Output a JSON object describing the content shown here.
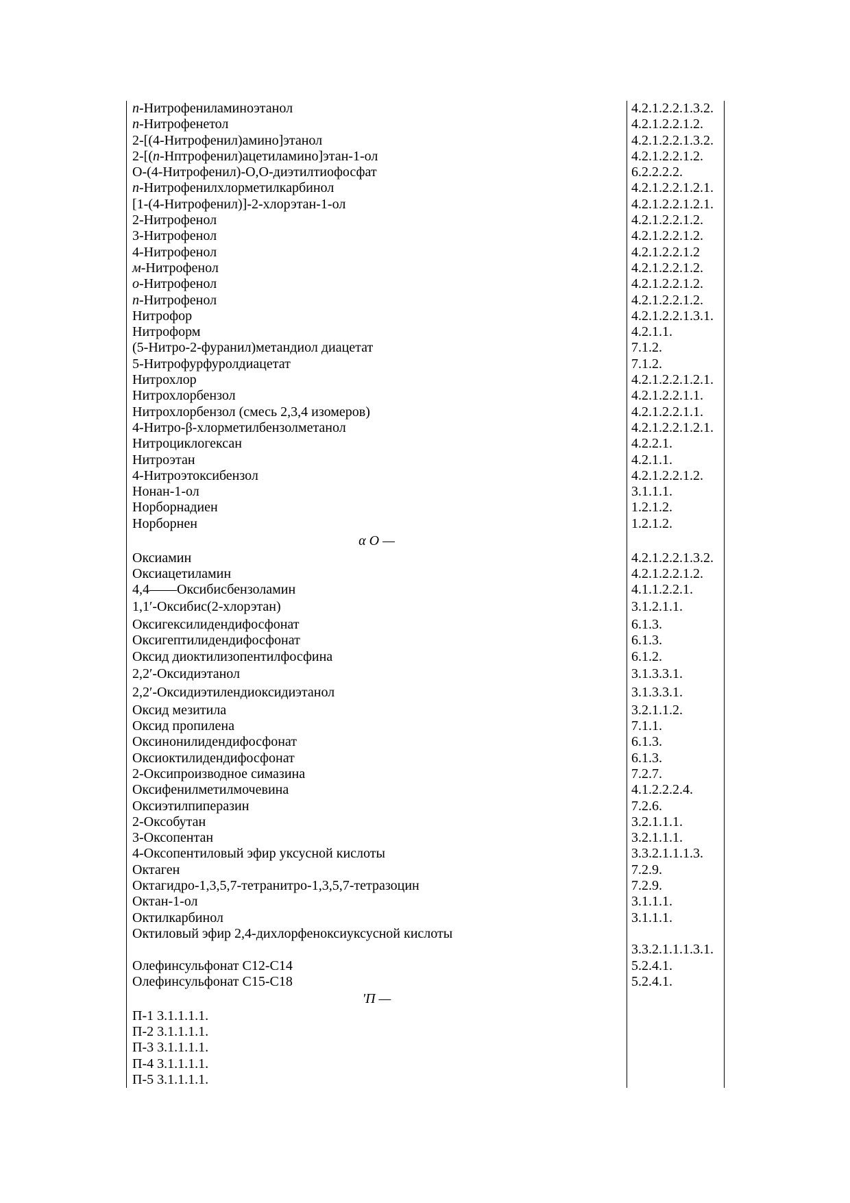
{
  "page": {
    "background_color": "#ffffff",
    "text_color": "#000000"
  },
  "table": {
    "sections": [
      {
        "header": null,
        "rows": [
          {
            "name": "*п*-Нитрофениламиноэтанол",
            "code": "4.2.1.2.2.1.3.2."
          },
          {
            "name": "*п*-Нитрофенетол",
            "code": "4.2.1.2.2.1.2."
          },
          {
            "name": "2-[(4-Нитрофенил)амино]этанол",
            "code": "4.2.1.2.2.1.3.2."
          },
          {
            "name": "2-[(*п*-Нптрофенил)ацетиламино]этан-1-ол",
            "code": "4.2.1.2.2.1.2."
          },
          {
            "name": "О-(4-Нитрофенил)-О,О-диэтилтиофосфат",
            "code": "6.2.2.2.2."
          },
          {
            "name": "*п*-Нитрофенилхлорметилкарбинол",
            "code": "4.2.1.2.2.1.2.1."
          },
          {
            "name": "[1-(4-Нитрофенил)]-2-хлорэтан-1-ол",
            "code": "4.2.1.2.2.1.2.1."
          },
          {
            "name": "2-Нитрофенол",
            "code": "4.2.1.2.2.1.2."
          },
          {
            "name": "3-Нитрофенол",
            "code": "4.2.1.2.2.1.2."
          },
          {
            "name": "4-Нитрофенол",
            "code": "4.2.1.2.2.1.2"
          },
          {
            "name": "*м*-Нитрофенол",
            "code": "4.2.1.2.2.1.2."
          },
          {
            "name": "*о*-Нитрофенол",
            "code": "4.2.1.2.2.1.2."
          },
          {
            "name": "*п*-Нитрофенол",
            "code": "4.2.1.2.2.1.2."
          },
          {
            "name": "Нитрофор",
            "code": "4.2.1.2.2.1.3.1."
          },
          {
            "name": "Нитроформ",
            "code": "4.2.1.1."
          },
          {
            "name": "(5-Нитро-2-фуранил)метандиол диацетат",
            "code": "7.1.2."
          },
          {
            "name": "5-Нитрофурфуролдиацетат",
            "code": "7.1.2."
          },
          {
            "name": "Нитрохлор",
            "code": "4.2.1.2.2.1.2.1."
          },
          {
            "name": "Нитрохлорбензол",
            "code": "4.2.1.2.2.1.1."
          },
          {
            "name": "Нитрохлорбензол (смесь 2,3,4 изомеров)",
            "code": "4.2.1.2.2.1.1."
          },
          {
            "name": "4-Нитро-β-хлорметилбензолметанол",
            "code": "4.2.1.2.2.1.2.1."
          },
          {
            "name": "Нитроциклогексан",
            "code": "4.2.2.1."
          },
          {
            "name": "Нитроэтан",
            "code": "4.2.1.1."
          },
          {
            "name": "4-Нитроэтоксибензол",
            "code": "4.2.1.2.2.1.2."
          },
          {
            "name": "Нонан-1-ол",
            "code": "3.1.1.1."
          },
          {
            "name": "Норборнадиен",
            "code": "1.2.1.2."
          },
          {
            "name": "Норборнен",
            "code": "1.2.1.2."
          }
        ]
      },
      {
        "header": "α О —",
        "rows": [
          {
            "name": "Оксиамин",
            "code": "4.2.1.2.2.1.3.2."
          },
          {
            "name": "Оксиацетиламин",
            "code": "4.2.1.2.2.1.2."
          },
          {
            "name": "4,4——Оксибисбензоламин",
            "code": "4.1.1.2.2.1."
          },
          {
            "name": "1,1′-Оксибис(2-хлорэтан)",
            "code": "3.1.2.1.1.",
            "tall": true
          },
          {
            "name": "Оксигексилидендифосфонат",
            "code": "6.1.3."
          },
          {
            "name": "Оксигептилидендифосфонат",
            "code": "6.1.3."
          },
          {
            "name": "Оксид диоктилизопентилфосфина",
            "code": "6.1.2."
          },
          {
            "name": "2,2′-Оксидиэтанол",
            "code": "3.1.3.3.1.",
            "tall": true
          },
          {
            "name": "2,2′-Оксидиэтилендиоксидиэтанол",
            "code": "3.1.3.3.1.",
            "tall": true
          },
          {
            "name": "Оксид мезитила",
            "code": "3.2.1.1.2."
          },
          {
            "name": "Оксид пропилена",
            "code": "7.1.1."
          },
          {
            "name": "Оксинонилидендифосфонат",
            "code": "6.1.3."
          },
          {
            "name": "Оксиоктилидендифосфонат",
            "code": "6.1.3."
          },
          {
            "name": "2-Оксипроизводное симазина",
            "code": "7.2.7."
          },
          {
            "name": "Оксифенилметилмочевина",
            "code": "4.1.2.2.2.4."
          },
          {
            "name": "Оксиэтилпиперазин",
            "code": "7.2.6."
          },
          {
            "name": "2-Оксобутан",
            "code": "3.2.1.1.1."
          },
          {
            "name": "3-Оксопентан",
            "code": "3.2.1.1.1."
          },
          {
            "name": "4-Оксопентиловый эфир уксусной кислоты",
            "code": "3.3.2.1.1.1.3."
          },
          {
            "name": "Октаген",
            "code": "7.2.9."
          },
          {
            "name": "Октагидро-1,3,5,7-тетранитро-1,3,5,7-тетразоцин",
            "code": "7.2.9."
          },
          {
            "name": "Октан-1-ол",
            "code": "3.1.1.1."
          },
          {
            "name": "Октилкарбинол",
            "code": "3.1.1.1."
          },
          {
            "name": "Октиловый эфир 2,4-дихлорфеноксиуксусной кислоты",
            "code": ""
          },
          {
            "name": "",
            "code": "3.3.2.1.1.1.3.1."
          },
          {
            "name": "Олефинсульфонат С12-С14",
            "code": "5.2.4.1."
          },
          {
            "name": "Олефинсульфонат С15-С18",
            "code": "5.2.4.1."
          }
        ]
      },
      {
        "header": "′П —",
        "rows": [
          {
            "name": "П-1 3.1.1.1.1.",
            "code": ""
          },
          {
            "name": "П-2 3.1.1.1.1.",
            "code": ""
          },
          {
            "name": "П-3 3.1.1.1.1.",
            "code": ""
          },
          {
            "name": "П-4 3.1.1.1.1.",
            "code": ""
          },
          {
            "name": "П-5 3.1.1.1.1.",
            "code": ""
          }
        ]
      }
    ]
  }
}
